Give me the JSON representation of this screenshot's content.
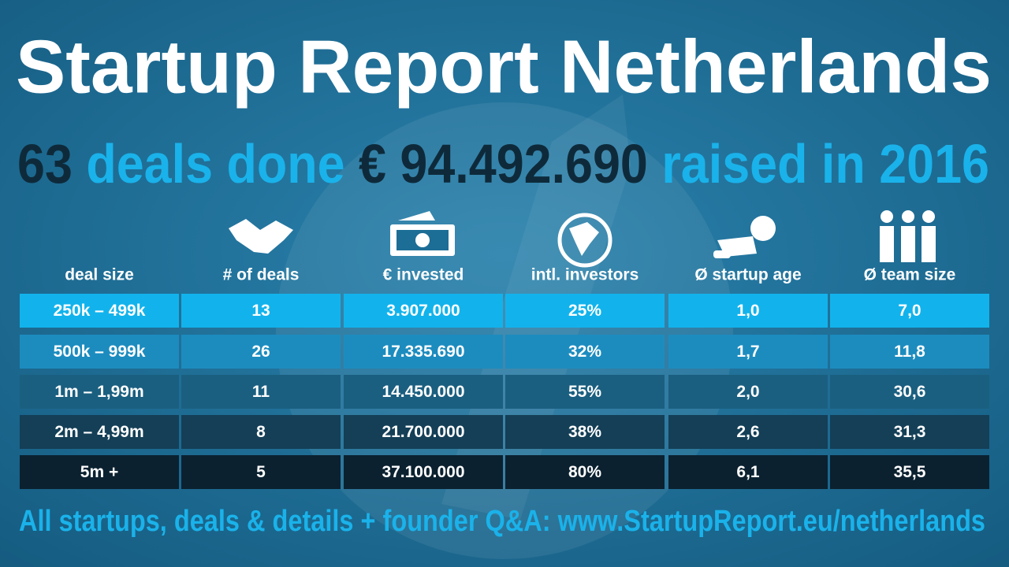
{
  "header": {
    "title": "Startup Report Netherlands",
    "subtitle": [
      "63",
      "deals done",
      "€ 94.492.690",
      "raised in 2016"
    ]
  },
  "table": {
    "columns": [
      "deal size",
      "# of deals",
      "€ invested",
      "intl. investors",
      "Ø startup age",
      "Ø team size"
    ],
    "rows": [
      [
        "250k – 499k",
        "13",
        "3.907.000",
        "25%",
        "1,0",
        "7,0"
      ],
      [
        "500k – 999k",
        "26",
        "17.335.690",
        "32%",
        "1,7",
        "11,8"
      ],
      [
        "1m – 1,99m",
        "11",
        "14.450.000",
        "55%",
        "2,0",
        "30,6"
      ],
      [
        "2m – 4,99m",
        "8",
        "21.700.000",
        "38%",
        "2,6",
        "31,3"
      ],
      [
        "5m +",
        "5",
        "37.100.000",
        "80%",
        "6,1",
        "35,5"
      ]
    ]
  },
  "footer": "All startups, deals & details + founder Q&A: www.StartupReport.eu/netherlands"
}
